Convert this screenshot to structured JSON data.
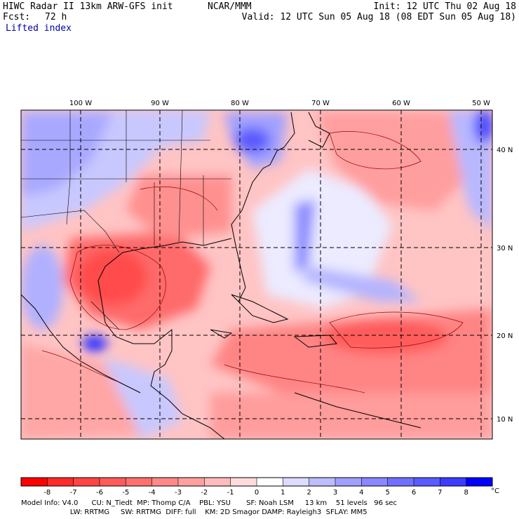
{
  "header": {
    "model_title": "HIWC Radar II 13km ARW-GFS init",
    "org": "NCAR/MMM",
    "init": "Init: 12 UTC Thu 02 Aug 18",
    "fcst_label": "Fcst:",
    "fcst_value": "72 h",
    "valid": "Valid: 12 UTC Sun 05 Aug 18 (08 EDT Sun 05 Aug 18)",
    "field": "Lifted index"
  },
  "map": {
    "lon_labels": [
      "100 W",
      "90 W",
      "80 W",
      "70 W",
      "60 W",
      "50 W"
    ],
    "lat_labels": [
      "40 N",
      "30 N",
      "20 N",
      "10 N"
    ]
  },
  "colorbar": {
    "ticks": [
      "-8",
      "-7",
      "-6",
      "-5",
      "-4",
      "-3",
      "-2",
      "-1",
      "0",
      "1",
      "2",
      "3",
      "4",
      "5",
      "6",
      "7",
      "8"
    ],
    "unit": "°C",
    "colors": [
      "#ff0000",
      "#ff2a2a",
      "#ff4444",
      "#ff5a5a",
      "#ff7070",
      "#ff8888",
      "#ffa0a0",
      "#ffbcbc",
      "#ffdcdc",
      "#ffffff",
      "#dcdcff",
      "#bcbcff",
      "#a0a0ff",
      "#8888ff",
      "#7070ff",
      "#5a5aff",
      "#3c3cff",
      "#0000ff"
    ]
  },
  "model_info": {
    "line1": "Model Info: V4.0      CU: N_Tiedt  MP: Thomp C/A    PBL: YSU       SF: Noah LSM     13 km    51 levels   96 sec",
    "line2": "                      LW: RRTMG     SW: RRTMG  DIFF: full    KM: 2D Smagor DAMP: Rayleigh3  SFLAY: MM5"
  }
}
